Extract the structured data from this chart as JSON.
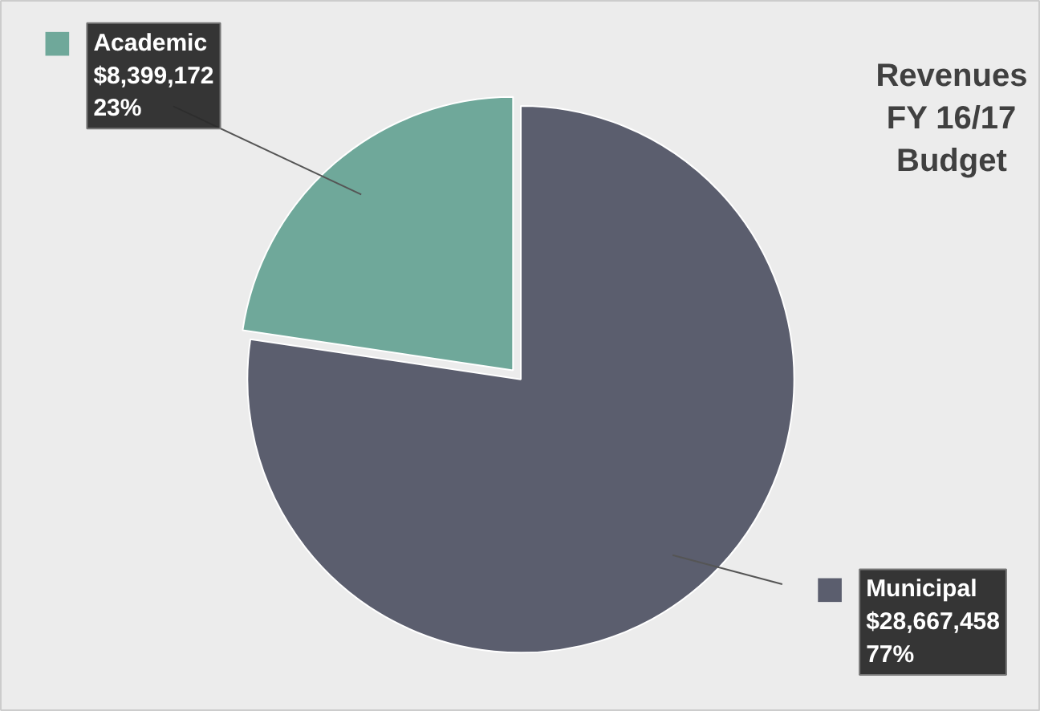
{
  "chart_data": {
    "type": "pie",
    "title": "Revenues\nFY 16/17\nBudget",
    "categories": [
      "Academic",
      "Municipal"
    ],
    "values": [
      8399172,
      28667458
    ],
    "colors": [
      "#6fa89a",
      "#5b5e6e"
    ],
    "value_labels": [
      "$8,399,172\n23%",
      "$28,667,458\n77%"
    ],
    "legend": "top left"
  }
}
